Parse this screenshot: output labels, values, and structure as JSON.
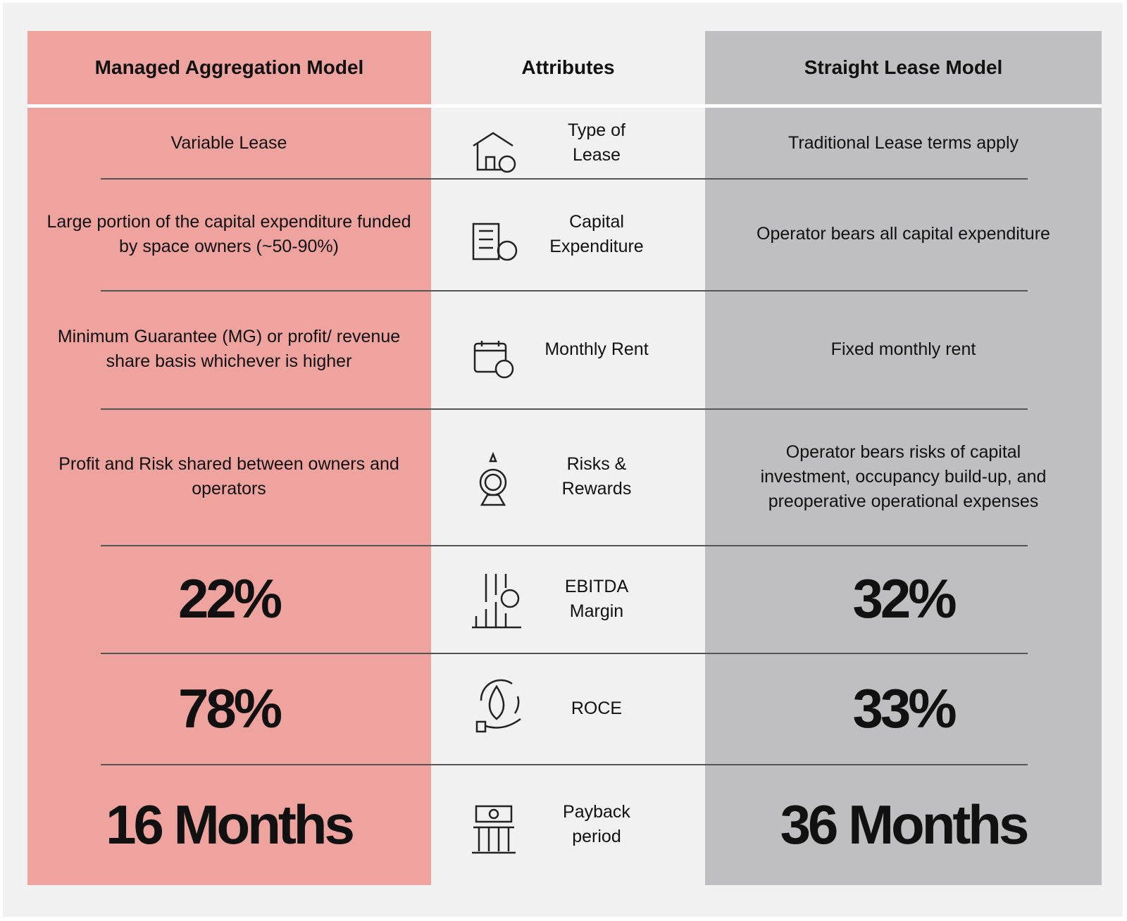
{
  "header": {
    "managed": "Managed Aggregation Model",
    "attribute": "Attributes",
    "straight": "Straight Lease Model"
  },
  "rows": [
    {
      "managed": "Variable Lease",
      "attribute": "Type of Lease",
      "straight": "Traditional Lease terms apply"
    },
    {
      "managed": "Large portion of the capital expenditure funded by space owners (~50-90%)",
      "attribute": "Capital Expenditure",
      "straight": "Operator bears all capital expenditure"
    },
    {
      "managed": "Minimum Guarantee (MG) or profit/ revenue share basis whichever is higher",
      "attribute": "Monthly Rent",
      "straight": "Fixed monthly rent"
    },
    {
      "managed": "Profit and Risk shared between owners and operators",
      "attribute": "Risks & Rewards",
      "straight": "Operator bears risks of capital investment, occupancy build-up, and preoperative operational expenses"
    },
    {
      "managed": "22%",
      "attribute": "EBITDA Margin",
      "straight": "32%"
    },
    {
      "managed": "78%",
      "attribute": "ROCE",
      "straight": "33%"
    },
    {
      "managed": "16 Months",
      "attribute": "Payback period",
      "straight": "36 Months"
    }
  ]
}
